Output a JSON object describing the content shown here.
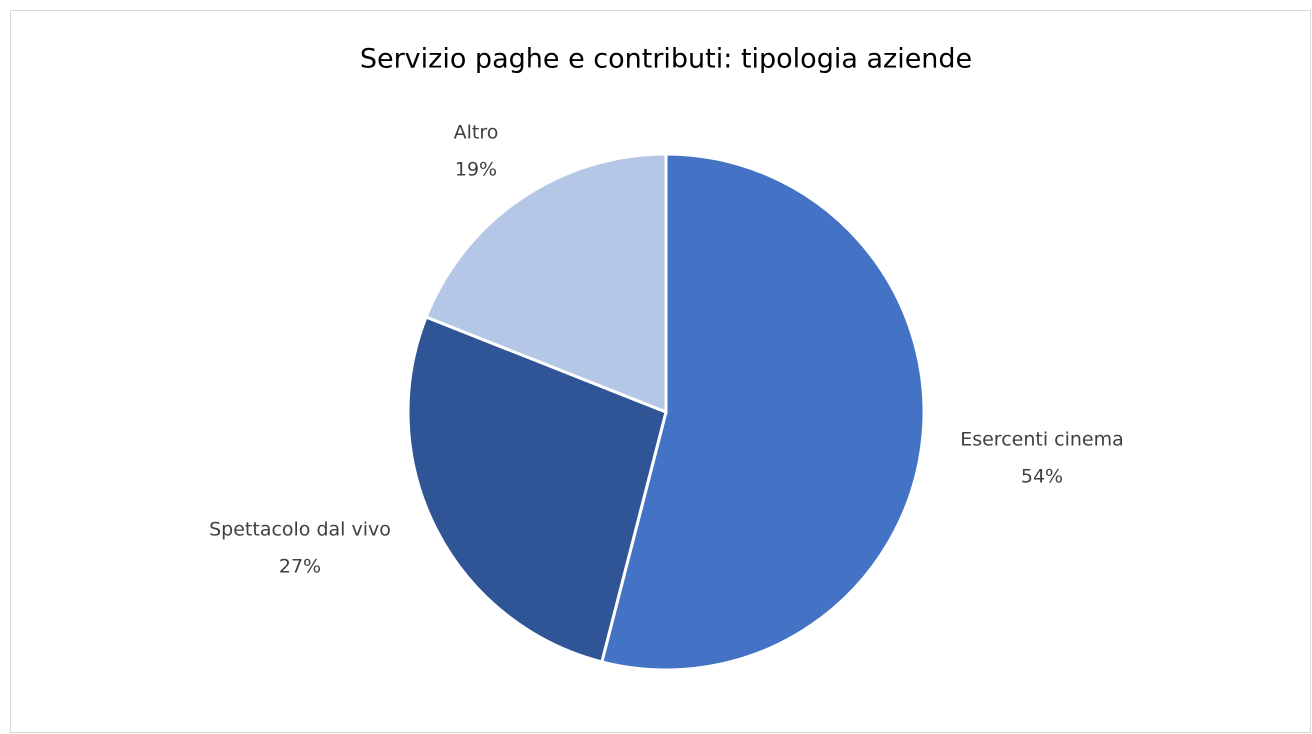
{
  "chart_data": {
    "type": "pie",
    "title": "Servizio paghe e contributi: tipologia aziende",
    "categories": [
      "Esercenti cinema",
      "Spettacolo dal vivo",
      "Altro"
    ],
    "values": [
      54,
      27,
      19
    ],
    "value_labels": [
      "54%",
      "27%",
      "19%"
    ],
    "colors": [
      "#4472c4",
      "#2f5597",
      "#b4c7e7"
    ]
  }
}
